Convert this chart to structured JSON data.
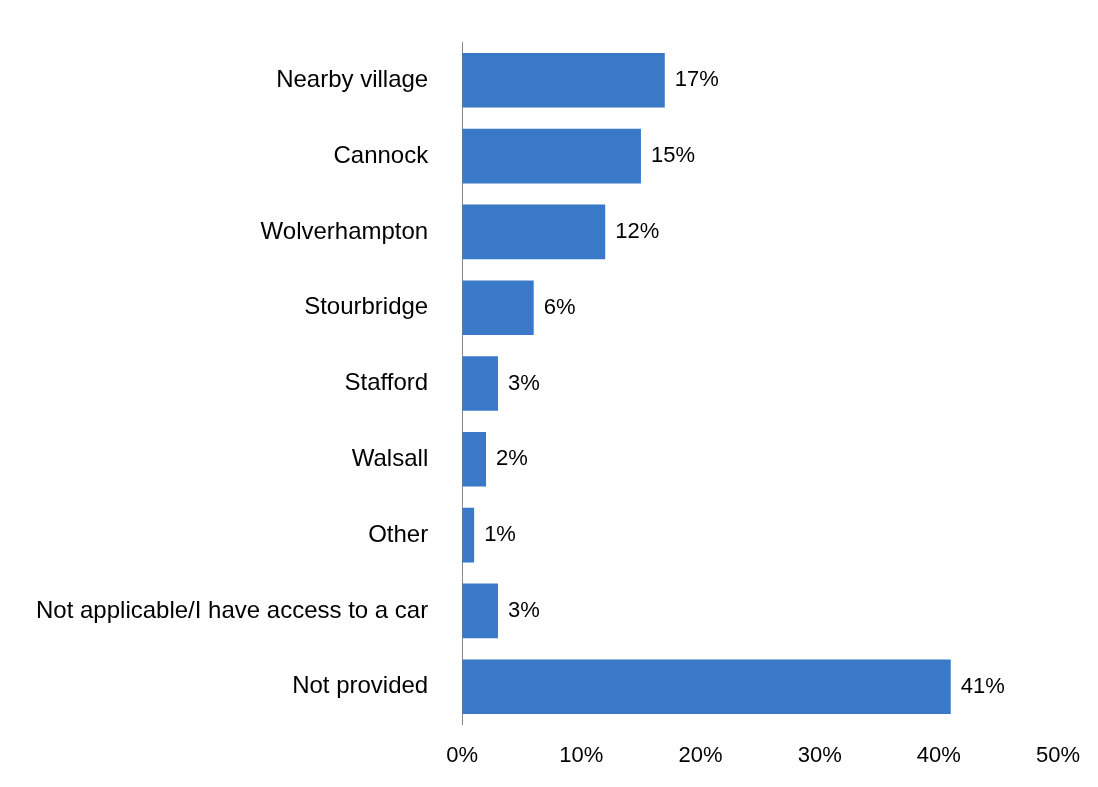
{
  "chart_data": {
    "type": "bar",
    "orientation": "horizontal",
    "categories": [
      "Nearby village",
      "Cannock",
      "Wolverhampton",
      "Stourbridge",
      "Stafford",
      "Walsall",
      "Other",
      "Not applicable/I have access to a car",
      "Not provided"
    ],
    "values": [
      17,
      15,
      12,
      6,
      3,
      2,
      1,
      3,
      41
    ],
    "value_labels": [
      "17%",
      "15%",
      "12%",
      "6%",
      "3%",
      "2%",
      "1%",
      "3%",
      "41%"
    ],
    "color": "#3a78c8",
    "xlim": [
      0,
      50
    ],
    "xticks": [
      {
        "value": 0,
        "label": "0%"
      },
      {
        "value": 10,
        "label": "10%"
      },
      {
        "value": 20,
        "label": "20%"
      },
      {
        "value": 30,
        "label": "30%"
      },
      {
        "value": 40,
        "label": "40%"
      },
      {
        "value": 50,
        "label": "50%"
      }
    ],
    "grid": false,
    "legend": false
  }
}
